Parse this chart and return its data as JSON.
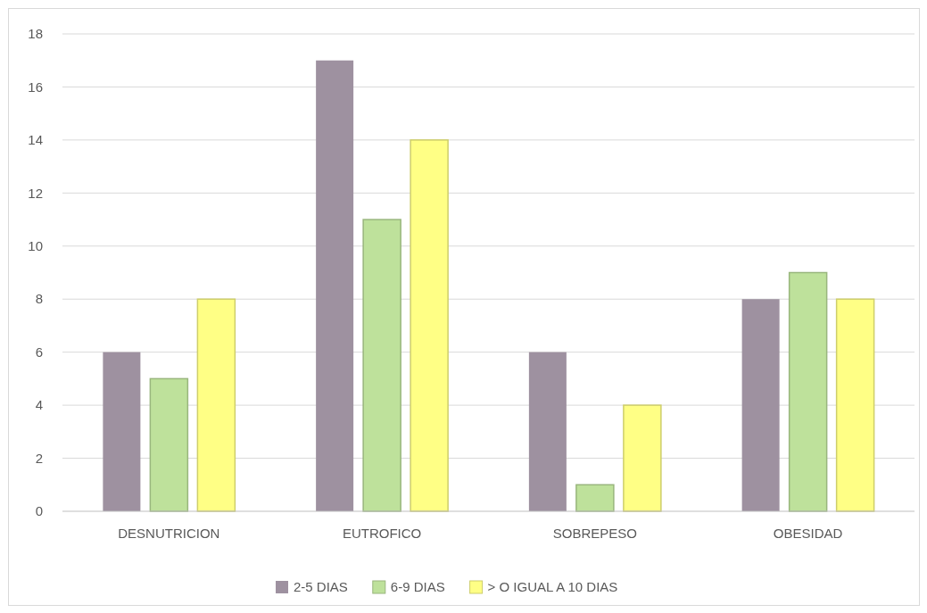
{
  "chart_data": {
    "type": "bar",
    "categories": [
      "DESNUTRICION",
      "EUTROFICO",
      "SOBREPESO",
      "OBESIDAD"
    ],
    "series": [
      {
        "name": "2-5 DIAS",
        "color": "#9e91a0",
        "values": [
          6,
          17,
          6,
          8
        ]
      },
      {
        "name": "6-9 DIAS",
        "color": "#bee19b",
        "values": [
          5,
          11,
          1,
          9
        ]
      },
      {
        "name": "> O IGUAL A 10 DIAS",
        "color": "#ffff85",
        "values": [
          8,
          14,
          4,
          8
        ]
      }
    ],
    "ylim": [
      0,
      18
    ],
    "yticks": [
      0,
      2,
      4,
      6,
      8,
      10,
      12,
      14,
      16,
      18
    ],
    "grid": "y",
    "legend": "bottom"
  }
}
